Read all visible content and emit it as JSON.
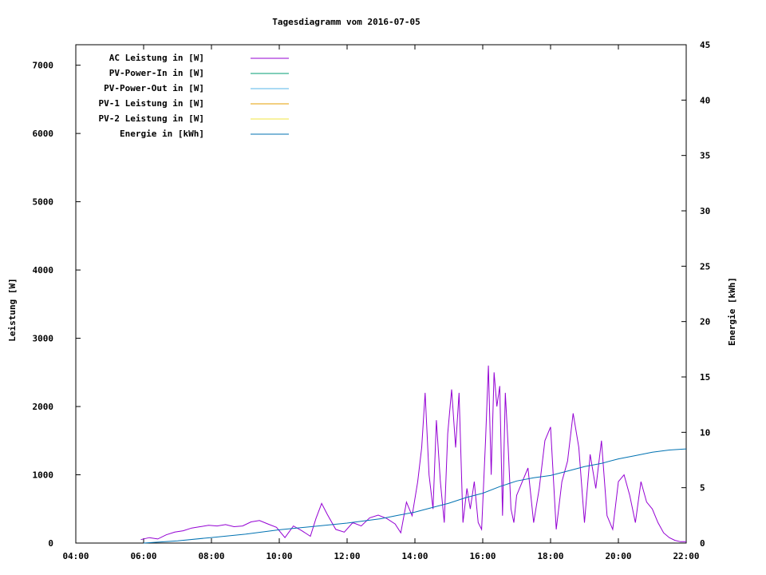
{
  "chart_data": {
    "type": "line",
    "title": "Tagesdiagramm vom 2016-07-05",
    "ylabel": "Leistung [W]",
    "y2label": "Energie [kWh]",
    "xlim": [
      "04:00",
      "22:00"
    ],
    "ylim": [
      0,
      7300
    ],
    "y2lim": [
      0,
      45
    ],
    "x_ticks": [
      "04:00",
      "06:00",
      "08:00",
      "10:00",
      "12:00",
      "14:00",
      "16:00",
      "18:00",
      "20:00",
      "22:00"
    ],
    "y_ticks": [
      0,
      1000,
      2000,
      3000,
      4000,
      5000,
      6000,
      7000
    ],
    "y2_ticks": [
      0,
      5,
      10,
      15,
      20,
      25,
      30,
      35,
      40,
      45
    ],
    "legend_position": "top-left",
    "grid": false,
    "colors": {
      "ac": "#9400d3",
      "pv_in": "#009e73",
      "pv_out": "#56b4e9",
      "pv1": "#e69f00",
      "pv2": "#f0e442",
      "energie": "#0072b2"
    },
    "legend": [
      {
        "name": "AC Leistung in [W]",
        "color": "#9400d3"
      },
      {
        "name": "PV-Power-In in [W]",
        "color": "#009e73"
      },
      {
        "name": "PV-Power-Out in [W]",
        "color": "#56b4e9"
      },
      {
        "name": "PV-1 Leistung in [W]",
        "color": "#e69f00"
      },
      {
        "name": "PV-2 Leistung in [W]",
        "color": "#f0e442"
      },
      {
        "name": "Energie in [kWh]",
        "color": "#0072b2"
      }
    ],
    "series": [
      {
        "name": "AC Leistung in [W]",
        "axis": "y",
        "x": [
          "05:55",
          "06:10",
          "06:25",
          "06:40",
          "06:55",
          "07:10",
          "07:25",
          "07:40",
          "07:55",
          "08:10",
          "08:25",
          "08:40",
          "08:55",
          "09:10",
          "09:25",
          "09:40",
          "09:55",
          "10:10",
          "10:25",
          "10:40",
          "10:55",
          "11:05",
          "11:15",
          "11:25",
          "11:40",
          "11:55",
          "12:10",
          "12:25",
          "12:40",
          "12:55",
          "13:10",
          "13:25",
          "13:35",
          "13:45",
          "13:55",
          "14:05",
          "14:12",
          "14:18",
          "14:25",
          "14:32",
          "14:38",
          "14:45",
          "14:52",
          "14:58",
          "15:05",
          "15:12",
          "15:18",
          "15:25",
          "15:32",
          "15:38",
          "15:45",
          "15:52",
          "15:58",
          "16:05",
          "16:10",
          "16:15",
          "16:20",
          "16:25",
          "16:30",
          "16:35",
          "16:40",
          "16:45",
          "16:50",
          "16:55",
          "17:00",
          "17:10",
          "17:20",
          "17:30",
          "17:40",
          "17:50",
          "18:00",
          "18:10",
          "18:20",
          "18:30",
          "18:40",
          "18:50",
          "19:00",
          "19:10",
          "19:20",
          "19:30",
          "19:40",
          "19:50",
          "20:00",
          "20:10",
          "20:20",
          "20:30",
          "20:40",
          "20:50",
          "21:00",
          "21:10",
          "21:20",
          "21:30",
          "21:40",
          "21:50",
          "22:00"
        ],
        "values": [
          50,
          80,
          60,
          120,
          160,
          180,
          220,
          240,
          260,
          250,
          270,
          240,
          250,
          310,
          330,
          280,
          230,
          80,
          250,
          180,
          100,
          360,
          580,
          420,
          200,
          160,
          300,
          250,
          370,
          410,
          360,
          280,
          150,
          600,
          400,
          900,
          1400,
          2200,
          1000,
          500,
          1800,
          900,
          300,
          1600,
          2250,
          1400,
          2200,
          300,
          800,
          500,
          900,
          300,
          200,
          1500,
          2600,
          1000,
          2500,
          2000,
          2300,
          400,
          2200,
          1400,
          500,
          300,
          700,
          900,
          1100,
          300,
          800,
          1500,
          1700,
          200,
          900,
          1200,
          1900,
          1400,
          300,
          1300,
          800,
          1500,
          400,
          200,
          900,
          1000,
          700,
          300,
          900,
          600,
          500,
          300,
          150,
          80,
          40,
          20,
          20
        ]
      },
      {
        "name": "Energie in [kWh]",
        "axis": "y2",
        "x": [
          "06:00",
          "07:00",
          "08:00",
          "09:00",
          "10:00",
          "11:00",
          "12:00",
          "13:00",
          "13:30",
          "14:00",
          "14:30",
          "15:00",
          "15:30",
          "16:00",
          "16:30",
          "17:00",
          "17:30",
          "18:00",
          "18:30",
          "19:00",
          "19:30",
          "20:00",
          "20:30",
          "21:00",
          "21:30",
          "22:00"
        ],
        "values": [
          0.0,
          0.2,
          0.5,
          0.8,
          1.2,
          1.5,
          1.8,
          2.2,
          2.5,
          2.8,
          3.2,
          3.6,
          4.1,
          4.5,
          5.1,
          5.6,
          5.9,
          6.1,
          6.5,
          6.9,
          7.2,
          7.6,
          7.9,
          8.2,
          8.4,
          8.5
        ]
      }
    ]
  }
}
